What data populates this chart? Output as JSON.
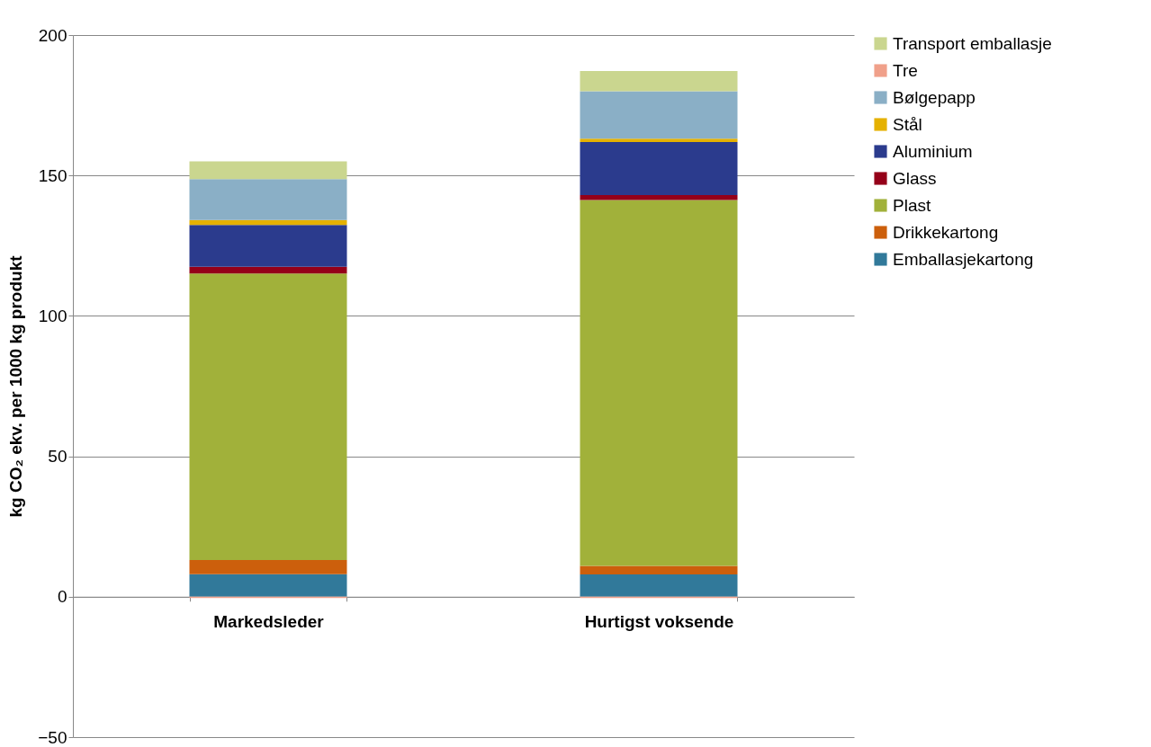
{
  "chart_data": {
    "type": "bar",
    "stacked": true,
    "ylabel": "kg CO₂ ekv. per 1000 kg produkt",
    "categories": [
      "Markedsleder",
      "Hurtigst voksende"
    ],
    "series": [
      {
        "name": "Emballasjekartong",
        "color": "#31799a",
        "values": [
          8.0,
          7.9
        ]
      },
      {
        "name": "Drikkekartong",
        "color": "#cc5f0c",
        "values": [
          5.1,
          3.1
        ]
      },
      {
        "name": "Plast",
        "color": "#a1b13a",
        "values": [
          102.0,
          130.3
        ]
      },
      {
        "name": "Glass",
        "color": "#950019",
        "values": [
          2.4,
          1.7
        ]
      },
      {
        "name": "Aluminium",
        "color": "#2b3b8d",
        "values": [
          14.9,
          18.9
        ]
      },
      {
        "name": "Stål",
        "color": "#e5b100",
        "values": [
          1.7,
          1.2
        ]
      },
      {
        "name": "Bølgepapp",
        "color": "#8aafc6",
        "values": [
          14.6,
          16.9
        ]
      },
      {
        "name": "Tre",
        "color": "#f0a08a",
        "values": [
          -0.5,
          -0.5
        ]
      },
      {
        "name": "Transport emballasje",
        "color": "#cad68f",
        "values": [
          6.3,
          7.2
        ]
      }
    ],
    "ylim": [
      -50,
      200
    ],
    "yticks": [
      -50,
      0,
      50,
      100,
      150,
      200
    ],
    "grid": "y",
    "legend": "right"
  }
}
